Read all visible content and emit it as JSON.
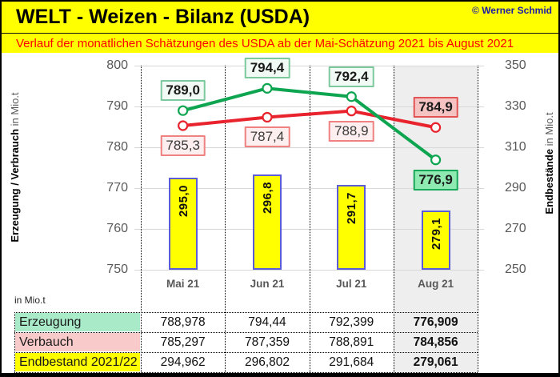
{
  "header": {
    "title": "WELT - Weizen - Bilanz (USDA)",
    "subtitle": "Verlauf der monatlichen Schätzungen des USDA ab der Mai-Schätzung 2021 bis August 2021",
    "copyright": "© Werner Schmid"
  },
  "colors": {
    "header_bg": "#ffff00",
    "subtitle_text": "#ff0000",
    "copyright_text": "#1b1ba8",
    "gridline": "#d8d8d8",
    "axis_text": "#595959",
    "highlight_column_bg": "#eeeeee",
    "bar_fill": "#ffff00",
    "bar_border": "#5c5cd6",
    "table_last_col_bg": "#ececec"
  },
  "chart_data": {
    "type": "line+bar combo",
    "categories": [
      "Mai 21",
      "Jun 21",
      "Jul 21",
      "Aug 21"
    ],
    "highlight_column": "Aug 21",
    "left_axis": {
      "label_bold": "Erzeugung / Verbrauch",
      "label_rest": " in Mio.t",
      "min": 750,
      "max": 800,
      "ticks": [
        800,
        790,
        780,
        770,
        760,
        750
      ]
    },
    "right_axis": {
      "label_bold": "Endbestände",
      "label_rest": " in Mio.t",
      "min": 250,
      "max": 350,
      "ticks": [
        350,
        330,
        310,
        290,
        270,
        250
      ]
    },
    "series": [
      {
        "name": "Erzeugung",
        "type": "line",
        "axis": "left",
        "color": "#0ea551",
        "values": [
          788.978,
          794.44,
          792.399,
          776.909
        ],
        "point_labels": [
          "789,0",
          "794,4",
          "792,4",
          "776,9"
        ],
        "label_side": "above",
        "label_bold": true,
        "label_bg": "#f1faf4",
        "label_border": "#7dc99e",
        "label_bg_emph": "#8feab2",
        "label_border_emph": "#18a85a"
      },
      {
        "name": "Verbauch",
        "type": "line",
        "axis": "left",
        "color": "#e8232d",
        "values": [
          785.297,
          787.359,
          788.891,
          784.856
        ],
        "point_labels": [
          "785,3",
          "787,4",
          "788,9",
          "784,9"
        ],
        "label_side": "below",
        "label_bold": false,
        "label_bg": "#fdefef",
        "label_border": "#ef8181",
        "label_bg_emph": "#f6c3c3",
        "label_border_emph": "#e25353"
      },
      {
        "name": "Endbestand 2021/22",
        "type": "bar",
        "axis": "right",
        "color": "#ffff00",
        "values": [
          294.962,
          296.802,
          291.684,
          279.061
        ],
        "point_labels": [
          "295,0",
          "296,8",
          "291,7",
          "279,1"
        ]
      }
    ]
  },
  "table": {
    "unit_label": "in Mio.t",
    "columns": [
      "Mai 21",
      "Jun 21",
      "Jul 21",
      "Aug 21"
    ],
    "rows": [
      {
        "label": "Erzeugung",
        "bg": "#a9eac9",
        "values": [
          "788,978",
          "794,44",
          "792,399",
          "776,909"
        ]
      },
      {
        "label": "Verbauch",
        "bg": "#f8caca",
        "values": [
          "785,297",
          "787,359",
          "788,891",
          "784,856"
        ]
      },
      {
        "label": "Endbestand 2021/22",
        "bg": "#ffff00",
        "values": [
          "294,962",
          "296,802",
          "291,684",
          "279,061"
        ]
      }
    ]
  }
}
